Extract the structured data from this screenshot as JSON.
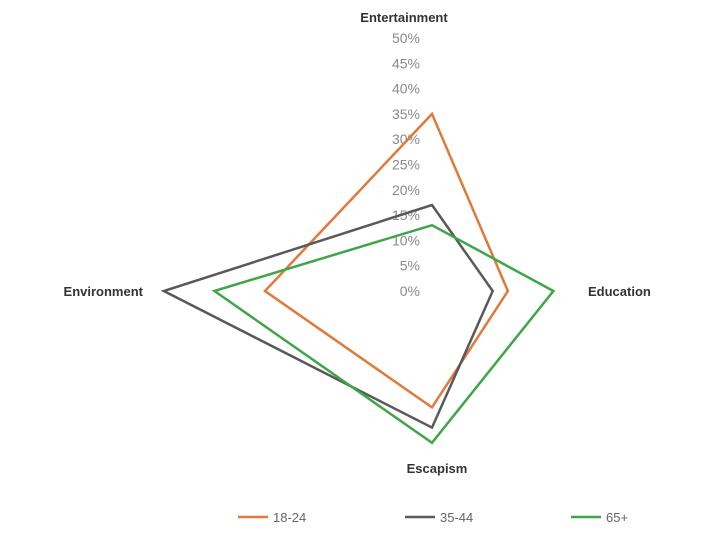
{
  "chart_data": {
    "type": "radar",
    "axes": [
      "Entertainment",
      "Education",
      "Escapism",
      "Environment"
    ],
    "ticks": [
      "0%",
      "5%",
      "10%",
      "15%",
      "20%",
      "25%",
      "30%",
      "35%",
      "40%",
      "45%",
      "50%"
    ],
    "range": [
      0,
      50
    ],
    "grid": false,
    "legend_position": "bottom",
    "series": [
      {
        "name": "18-24",
        "color": "#e07a3c",
        "values": [
          35,
          15,
          23,
          33
        ]
      },
      {
        "name": "35-44",
        "color": "#595959",
        "values": [
          17,
          12,
          27,
          53
        ]
      },
      {
        "name": "65+",
        "color": "#3fa648",
        "values": [
          13,
          24,
          30,
          43
        ]
      }
    ]
  }
}
